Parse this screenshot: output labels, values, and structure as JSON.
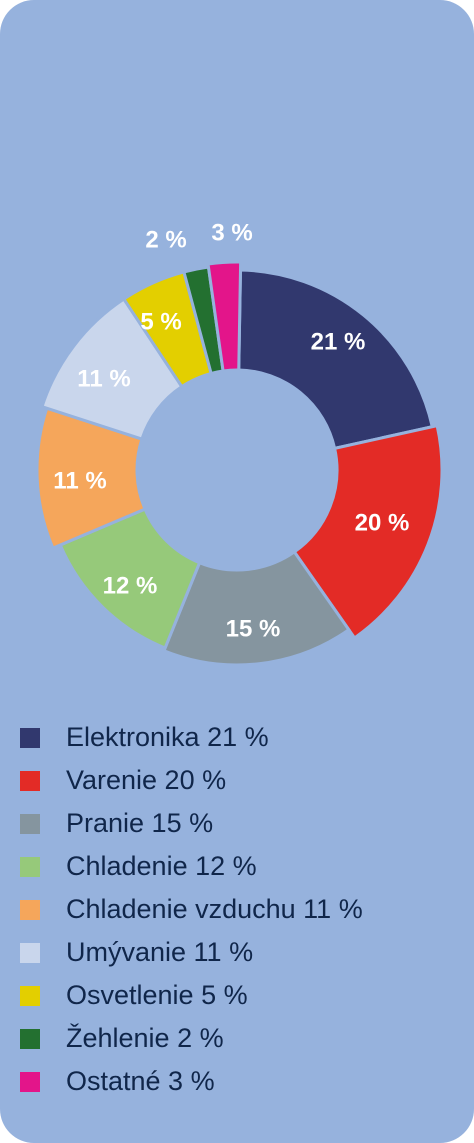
{
  "chart_data": {
    "type": "pie",
    "donut": true,
    "slices": [
      {
        "label": "Elektronika",
        "value": 21,
        "value_label": "21 %",
        "color": "#31386e"
      },
      {
        "label": "Varenie",
        "value": 20,
        "value_label": "20 %",
        "color": "#e32b26"
      },
      {
        "label": "Pranie",
        "value": 15,
        "value_label": "15 %",
        "color": "#85959f"
      },
      {
        "label": "Chladenie",
        "value": 12,
        "value_label": "12 %",
        "color": "#96c97a"
      },
      {
        "label": "Chladenie vzduchu",
        "value": 11,
        "value_label": "11 %",
        "color": "#f5a65b"
      },
      {
        "label": "Umývanie",
        "value": 11,
        "value_label": "11 %",
        "color": "#c9d6ec"
      },
      {
        "label": "Osvetlenie",
        "value": 5,
        "value_label": "5 %",
        "color": "#e3cf00"
      },
      {
        "label": "Žehlenie",
        "value": 2,
        "value_label": "2 %",
        "color": "#237030"
      },
      {
        "label": "Ostatné",
        "value": 3,
        "value_label": "3 %",
        "color": "#e3158a"
      }
    ],
    "legend": [
      "Elektronika 21 %",
      "Varenie 20 %",
      "Pranie 15 %",
      "Chladenie 12 %",
      "Chladenie vzduchu 11 %",
      "Umývanie 11 %",
      "Osvetlenie 5 %",
      "Žehlenie 2 %",
      "Ostatné 3 %"
    ],
    "legend_placement": "bottom"
  },
  "colors": {
    "background": "#96b2dd",
    "legend_text": "#10264a",
    "label_text": "#ffffff"
  }
}
